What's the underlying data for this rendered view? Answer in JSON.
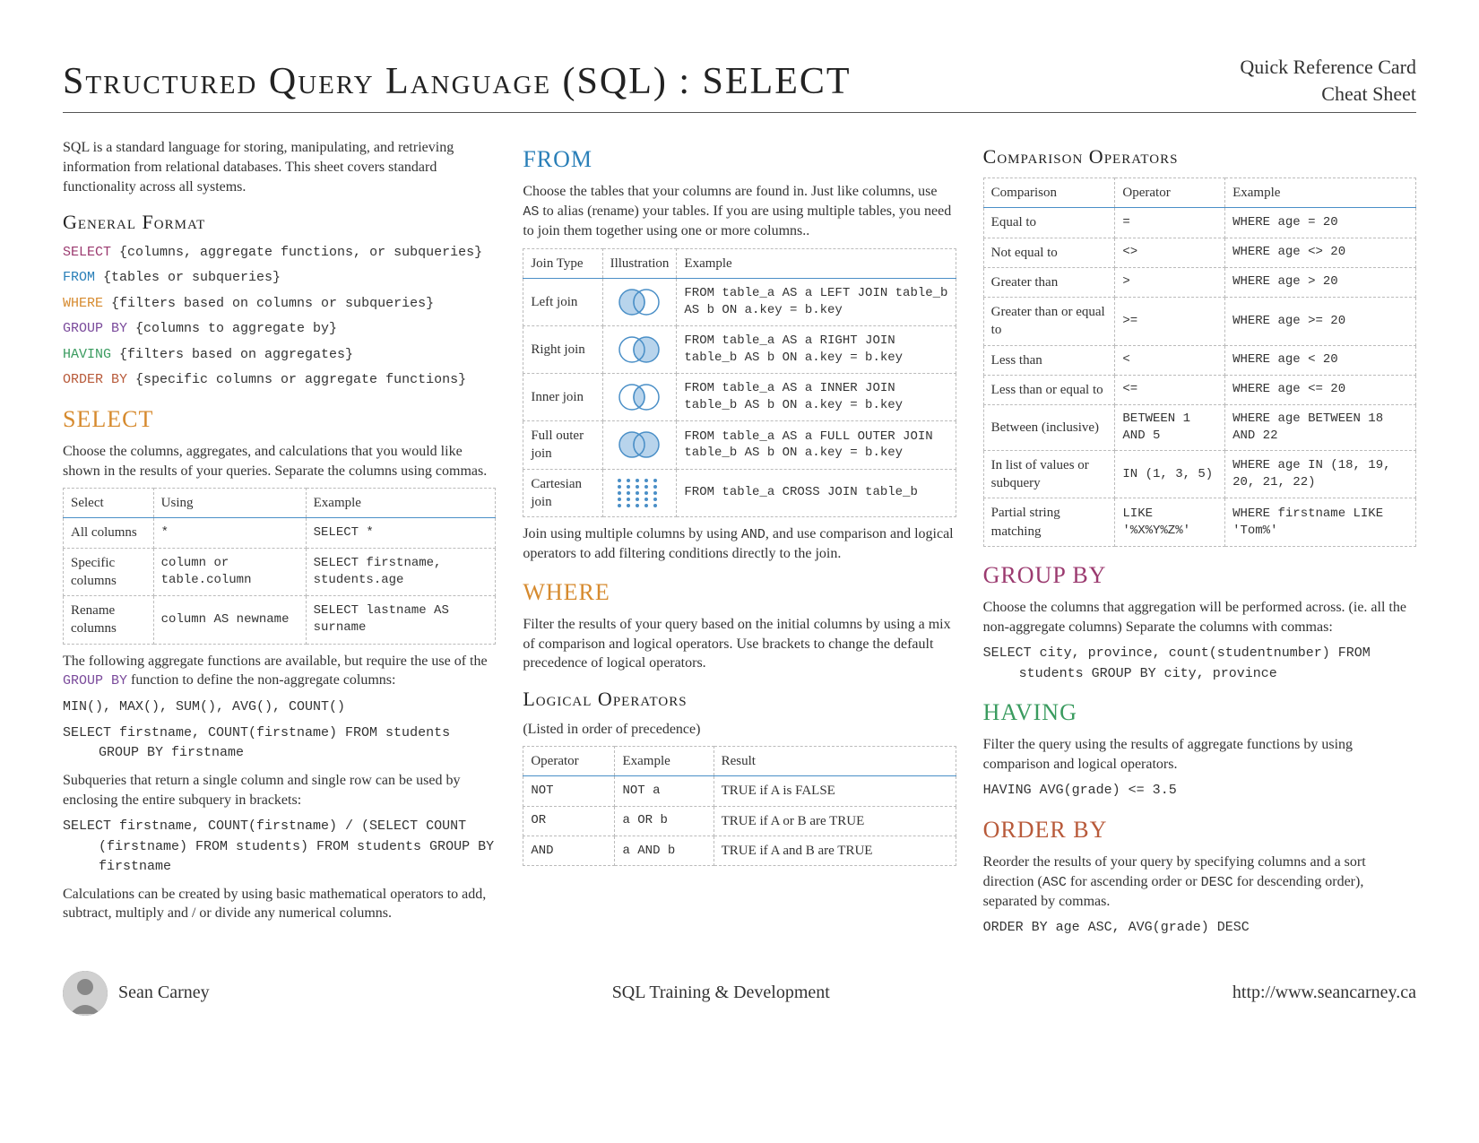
{
  "header": {
    "title": "Structured Query Language (SQL) : SELECT",
    "sub1": "Quick Reference Card",
    "sub2": "Cheat Sheet"
  },
  "intro": "SQL is a standard language for storing, manipulating, and retrieving information from relational databases. This sheet covers standard functionality across all systems.",
  "general_format": {
    "heading": "General Format",
    "lines": [
      {
        "kw": "SELECT",
        "cls": "kw-select",
        "rest": " {columns, aggregate functions, or subqueries}"
      },
      {
        "kw": "FROM",
        "cls": "kw-from",
        "rest": " {tables or subqueries}"
      },
      {
        "kw": "WHERE",
        "cls": "kw-where",
        "rest": " {filters based on columns or subqueries}"
      },
      {
        "kw": "GROUP BY",
        "cls": "kw-group",
        "rest": " {columns to aggregate by}"
      },
      {
        "kw": "HAVING",
        "cls": "kw-having",
        "rest": " {filters based on aggregates}"
      },
      {
        "kw": "ORDER BY",
        "cls": "kw-order",
        "rest": " {specific columns or aggregate functions}"
      }
    ]
  },
  "select": {
    "heading": "SELECT",
    "p1": "Choose the columns, aggregates, and calculations that you would like shown in the results of your queries. Separate the columns using commas.",
    "table": {
      "headers": [
        "Select",
        "Using",
        "Example"
      ],
      "rows": [
        [
          "All columns",
          "*",
          "SELECT *"
        ],
        [
          "Specific columns",
          "column or table.column",
          "SELECT firstname, students.age"
        ],
        [
          "Rename columns",
          "column AS newname",
          "SELECT lastname AS surname"
        ]
      ]
    },
    "agg_p": "The following aggregate functions are available, but require the use of the ",
    "agg_kw": "GROUP BY",
    "agg_p2": " function to define the non-aggregate columns:",
    "agg_fns": "MIN(), MAX(), SUM(), AVG(), COUNT()",
    "agg_ex": "SELECT firstname, COUNT(firstname) FROM students GROUP BY firstname",
    "sub_p": "Subqueries that return a single column and single row can be used by enclosing the entire subquery in brackets:",
    "sub_ex": "SELECT firstname, COUNT(firstname) / (SELECT COUNT (firstname) FROM students) FROM students GROUP BY firstname",
    "calc_p": "Calculations can be created by using basic mathematical operators to add, subtract, multiply and / or divide any numerical columns."
  },
  "from": {
    "heading": "FROM",
    "p1a": "Choose the tables that your columns are found in. Just like columns, use ",
    "p1kw": "AS",
    "p1b": " to alias (rename) your tables. If you are using multiple tables, you need to join them together using one or more columns..",
    "table": {
      "headers": [
        "Join Type",
        "Illustration",
        "Example"
      ],
      "rows": [
        {
          "type": "Left join",
          "venn": "left",
          "ex": "FROM table_a AS a LEFT JOIN table_b AS b ON a.key = b.key"
        },
        {
          "type": "Right join",
          "venn": "right",
          "ex": "FROM table_a AS a RIGHT JOIN table_b AS b ON a.key = b.key"
        },
        {
          "type": "Inner join",
          "venn": "inner",
          "ex": "FROM table_a AS a INNER JOIN table_b AS b ON a.key = b.key"
        },
        {
          "type": "Full outer join",
          "venn": "full",
          "ex": "FROM table_a AS a FULL OUTER JOIN table_b AS b ON a.key = b.key"
        },
        {
          "type": "Cartesian join",
          "venn": "cross",
          "ex": "FROM table_a CROSS JOIN table_b"
        }
      ]
    },
    "p2a": "Join using multiple columns by using ",
    "p2kw": "AND",
    "p2b": ", and use comparison and logical operators to add filtering conditions directly to the join."
  },
  "where": {
    "heading": "WHERE",
    "p1": "Filter the results of your query based on the initial columns by using a mix of comparison and logical operators. Use brackets to change the default precedence of logical operators.",
    "logops_heading": "Logical Operators",
    "logops_note": "(Listed in order of precedence)",
    "logops": {
      "headers": [
        "Operator",
        "Example",
        "Result"
      ],
      "rows": [
        [
          "NOT",
          "NOT a",
          "TRUE if A is FALSE"
        ],
        [
          "OR",
          "a OR b",
          "TRUE if A or B are TRUE"
        ],
        [
          "AND",
          "a AND b",
          "TRUE if A and B are TRUE"
        ]
      ]
    }
  },
  "compops": {
    "heading": "Comparison Operators",
    "table": {
      "headers": [
        "Comparison",
        "Operator",
        "Example"
      ],
      "rows": [
        [
          "Equal to",
          "=",
          "WHERE age = 20"
        ],
        [
          "Not equal to",
          "<>",
          "WHERE age <> 20"
        ],
        [
          "Greater than",
          ">",
          "WHERE age > 20"
        ],
        [
          "Greater than or equal to",
          ">=",
          "WHERE age >= 20"
        ],
        [
          "Less than",
          "<",
          "WHERE age < 20"
        ],
        [
          "Less than or equal to",
          "<=",
          "WHERE age <= 20"
        ],
        [
          "Between (inclusive)",
          "BETWEEN 1 AND 5",
          "WHERE age BETWEEN 18 AND 22"
        ],
        [
          "In list of values or subquery",
          "IN (1, 3, 5)",
          "WHERE age IN (18, 19, 20, 21, 22)"
        ],
        [
          "Partial string matching",
          "LIKE '%X%Y%Z%'",
          "WHERE firstname LIKE 'Tom%'"
        ]
      ]
    }
  },
  "groupby": {
    "heading": "GROUP BY",
    "p": "Choose the columns that aggregation will be performed across. (ie. all the non-aggregate columns)  Separate the columns with  commas:",
    "ex": "SELECT city, province, count(studentnumber) FROM students GROUP BY city, province"
  },
  "having": {
    "heading": "HAVING",
    "p": "Filter the query using the results of aggregate functions by using comparison and logical operators.",
    "ex": "HAVING AVG(grade) <= 3.5"
  },
  "orderby": {
    "heading": "ORDER BY",
    "pa": "Reorder the results of your query by specifying columns and a sort direction (",
    "kw1": "ASC",
    "pb": " for ascending order or ",
    "kw2": "DESC",
    "pc": " for descending order), separated by commas.",
    "ex": "ORDER BY age ASC, AVG(grade) DESC"
  },
  "footer": {
    "author": "Sean Carney",
    "center": "SQL Training & Development",
    "url": "http://www.seancarney.ca"
  },
  "venn_colors": {
    "stroke": "#4a8fc7",
    "fill": "#b8d4ec",
    "bg": "#ffffff"
  }
}
